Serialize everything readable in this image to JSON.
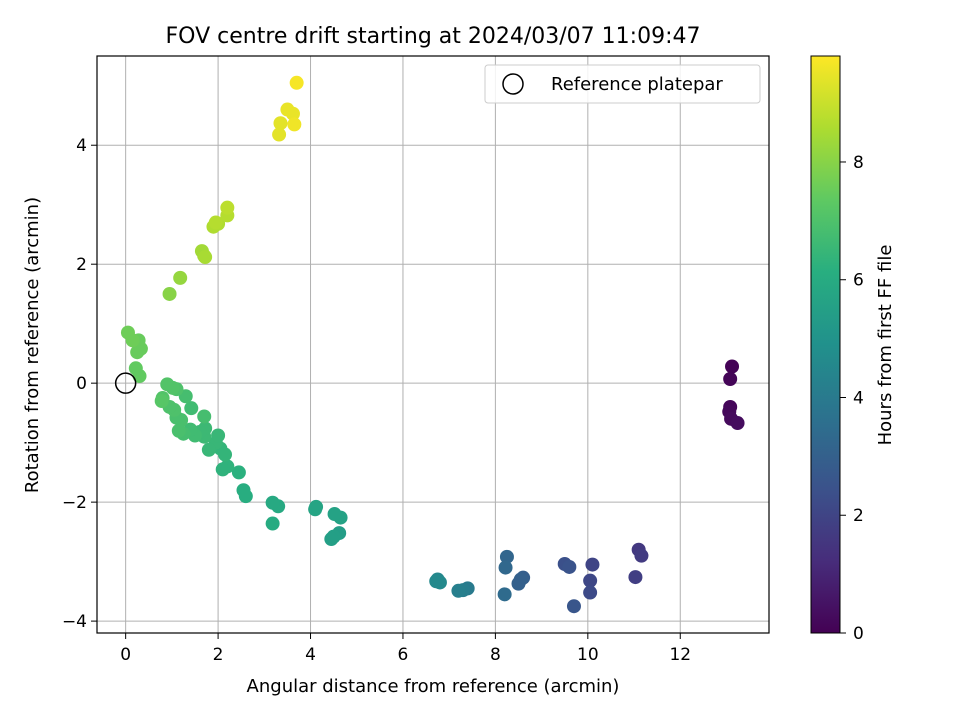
{
  "chart_data": {
    "type": "scatter",
    "title": "FOV centre drift starting at 2024/03/07 11:09:47",
    "xlabel": "Angular distance from reference (arcmin)",
    "ylabel": "Rotation from reference (arcmin)",
    "xlim": [
      -0.62,
      13.92
    ],
    "ylim": [
      -4.2,
      5.5
    ],
    "xticks": [
      0,
      2,
      4,
      6,
      8,
      10,
      12
    ],
    "yticks": [
      -4,
      -2,
      0,
      2,
      4
    ],
    "grid": true,
    "legend": {
      "placement": "top-right",
      "entries": [
        "Reference platepar"
      ]
    },
    "reference_point": {
      "x": 0,
      "y": 0
    },
    "colorbar": {
      "label": "Hours from first FF file",
      "range": [
        0,
        9.8
      ],
      "ticks": [
        0,
        2,
        4,
        6,
        8
      ],
      "colormap": "viridis"
    },
    "points": [
      {
        "x": 13.12,
        "y": 0.28,
        "c": 0.05
      },
      {
        "x": 13.08,
        "y": 0.07,
        "c": 0.1
      },
      {
        "x": 13.08,
        "y": -0.4,
        "c": 0.15
      },
      {
        "x": 13.06,
        "y": -0.48,
        "c": 0.2
      },
      {
        "x": 13.1,
        "y": -0.6,
        "c": 0.25
      },
      {
        "x": 13.24,
        "y": -0.67,
        "c": 0.3
      },
      {
        "x": 11.1,
        "y": -2.8,
        "c": 1.6
      },
      {
        "x": 11.16,
        "y": -2.9,
        "c": 1.7
      },
      {
        "x": 11.03,
        "y": -3.26,
        "c": 1.8
      },
      {
        "x": 10.1,
        "y": -3.05,
        "c": 2.0
      },
      {
        "x": 10.05,
        "y": -3.32,
        "c": 2.1
      },
      {
        "x": 10.05,
        "y": -3.52,
        "c": 2.2
      },
      {
        "x": 9.5,
        "y": -3.04,
        "c": 2.4
      },
      {
        "x": 9.6,
        "y": -3.09,
        "c": 2.5
      },
      {
        "x": 9.7,
        "y": -3.75,
        "c": 2.6
      },
      {
        "x": 8.6,
        "y": -3.27,
        "c": 2.9
      },
      {
        "x": 8.5,
        "y": -3.37,
        "c": 3.0
      },
      {
        "x": 8.55,
        "y": -3.3,
        "c": 3.0
      },
      {
        "x": 8.25,
        "y": -2.92,
        "c": 3.2
      },
      {
        "x": 8.22,
        "y": -3.1,
        "c": 3.3
      },
      {
        "x": 8.2,
        "y": -3.55,
        "c": 3.4
      },
      {
        "x": 7.4,
        "y": -3.45,
        "c": 4.0
      },
      {
        "x": 7.3,
        "y": -3.48,
        "c": 4.1
      },
      {
        "x": 7.2,
        "y": -3.49,
        "c": 4.2
      },
      {
        "x": 6.75,
        "y": -3.3,
        "c": 4.5
      },
      {
        "x": 6.8,
        "y": -3.35,
        "c": 4.6
      },
      {
        "x": 6.72,
        "y": -3.33,
        "c": 4.6
      },
      {
        "x": 4.62,
        "y": -2.52,
        "c": 5.4
      },
      {
        "x": 4.5,
        "y": -2.58,
        "c": 5.5
      },
      {
        "x": 4.45,
        "y": -2.62,
        "c": 5.5
      },
      {
        "x": 4.65,
        "y": -2.26,
        "c": 5.6
      },
      {
        "x": 4.52,
        "y": -2.2,
        "c": 5.6
      },
      {
        "x": 4.12,
        "y": -2.08,
        "c": 5.7
      },
      {
        "x": 4.1,
        "y": -2.12,
        "c": 5.7
      },
      {
        "x": 3.3,
        "y": -2.07,
        "c": 5.9
      },
      {
        "x": 3.18,
        "y": -2.01,
        "c": 5.9
      },
      {
        "x": 3.18,
        "y": -2.36,
        "c": 6.0
      },
      {
        "x": 2.6,
        "y": -1.9,
        "c": 6.1
      },
      {
        "x": 2.55,
        "y": -1.8,
        "c": 6.1
      },
      {
        "x": 2.45,
        "y": -1.5,
        "c": 6.2
      },
      {
        "x": 2.2,
        "y": -1.4,
        "c": 6.3
      },
      {
        "x": 2.1,
        "y": -1.45,
        "c": 6.3
      },
      {
        "x": 2.15,
        "y": -1.2,
        "c": 6.4
      },
      {
        "x": 2.05,
        "y": -1.1,
        "c": 6.4
      },
      {
        "x": 1.95,
        "y": -1.0,
        "c": 6.5
      },
      {
        "x": 2.0,
        "y": -0.88,
        "c": 6.5
      },
      {
        "x": 1.8,
        "y": -1.12,
        "c": 6.5
      },
      {
        "x": 1.7,
        "y": -0.9,
        "c": 6.6
      },
      {
        "x": 1.72,
        "y": -0.76,
        "c": 6.6
      },
      {
        "x": 1.6,
        "y": -0.82,
        "c": 6.6
      },
      {
        "x": 1.5,
        "y": -0.88,
        "c": 6.7
      },
      {
        "x": 1.4,
        "y": -0.78,
        "c": 6.7
      },
      {
        "x": 1.42,
        "y": -0.42,
        "c": 6.7
      },
      {
        "x": 1.3,
        "y": -0.22,
        "c": 6.8
      },
      {
        "x": 1.7,
        "y": -0.56,
        "c": 6.8
      },
      {
        "x": 1.25,
        "y": -0.85,
        "c": 6.8
      },
      {
        "x": 1.15,
        "y": -0.8,
        "c": 6.9
      },
      {
        "x": 1.2,
        "y": -0.62,
        "c": 6.9
      },
      {
        "x": 1.1,
        "y": -0.58,
        "c": 6.9
      },
      {
        "x": 1.05,
        "y": -0.45,
        "c": 7.0
      },
      {
        "x": 0.95,
        "y": -0.4,
        "c": 7.0
      },
      {
        "x": 1.1,
        "y": -0.1,
        "c": 7.0
      },
      {
        "x": 1.02,
        "y": -0.08,
        "c": 7.1
      },
      {
        "x": 0.9,
        "y": -0.02,
        "c": 7.1
      },
      {
        "x": 0.8,
        "y": -0.25,
        "c": 7.1
      },
      {
        "x": 0.78,
        "y": -0.3,
        "c": 7.2
      },
      {
        "x": 0.3,
        "y": 0.12,
        "c": 7.4
      },
      {
        "x": 0.22,
        "y": 0.25,
        "c": 7.4
      },
      {
        "x": 0.25,
        "y": 0.52,
        "c": 7.5
      },
      {
        "x": 0.33,
        "y": 0.58,
        "c": 7.5
      },
      {
        "x": 0.28,
        "y": 0.72,
        "c": 7.5
      },
      {
        "x": 0.15,
        "y": 0.72,
        "c": 7.6
      },
      {
        "x": 0.05,
        "y": 0.85,
        "c": 7.6
      },
      {
        "x": 0.95,
        "y": 1.5,
        "c": 8.0
      },
      {
        "x": 1.18,
        "y": 1.77,
        "c": 8.2
      },
      {
        "x": 1.65,
        "y": 2.22,
        "c": 8.4
      },
      {
        "x": 1.7,
        "y": 2.14,
        "c": 8.4
      },
      {
        "x": 1.72,
        "y": 2.12,
        "c": 8.5
      },
      {
        "x": 1.9,
        "y": 2.63,
        "c": 8.6
      },
      {
        "x": 2.0,
        "y": 2.68,
        "c": 8.6
      },
      {
        "x": 1.95,
        "y": 2.7,
        "c": 8.7
      },
      {
        "x": 2.2,
        "y": 2.82,
        "c": 8.7
      },
      {
        "x": 2.2,
        "y": 2.95,
        "c": 8.8
      },
      {
        "x": 3.32,
        "y": 4.18,
        "c": 9.4
      },
      {
        "x": 3.35,
        "y": 4.37,
        "c": 9.4
      },
      {
        "x": 3.5,
        "y": 4.6,
        "c": 9.5
      },
      {
        "x": 3.62,
        "y": 4.53,
        "c": 9.5
      },
      {
        "x": 3.65,
        "y": 4.35,
        "c": 9.6
      },
      {
        "x": 3.7,
        "y": 5.05,
        "c": 9.7
      }
    ]
  }
}
